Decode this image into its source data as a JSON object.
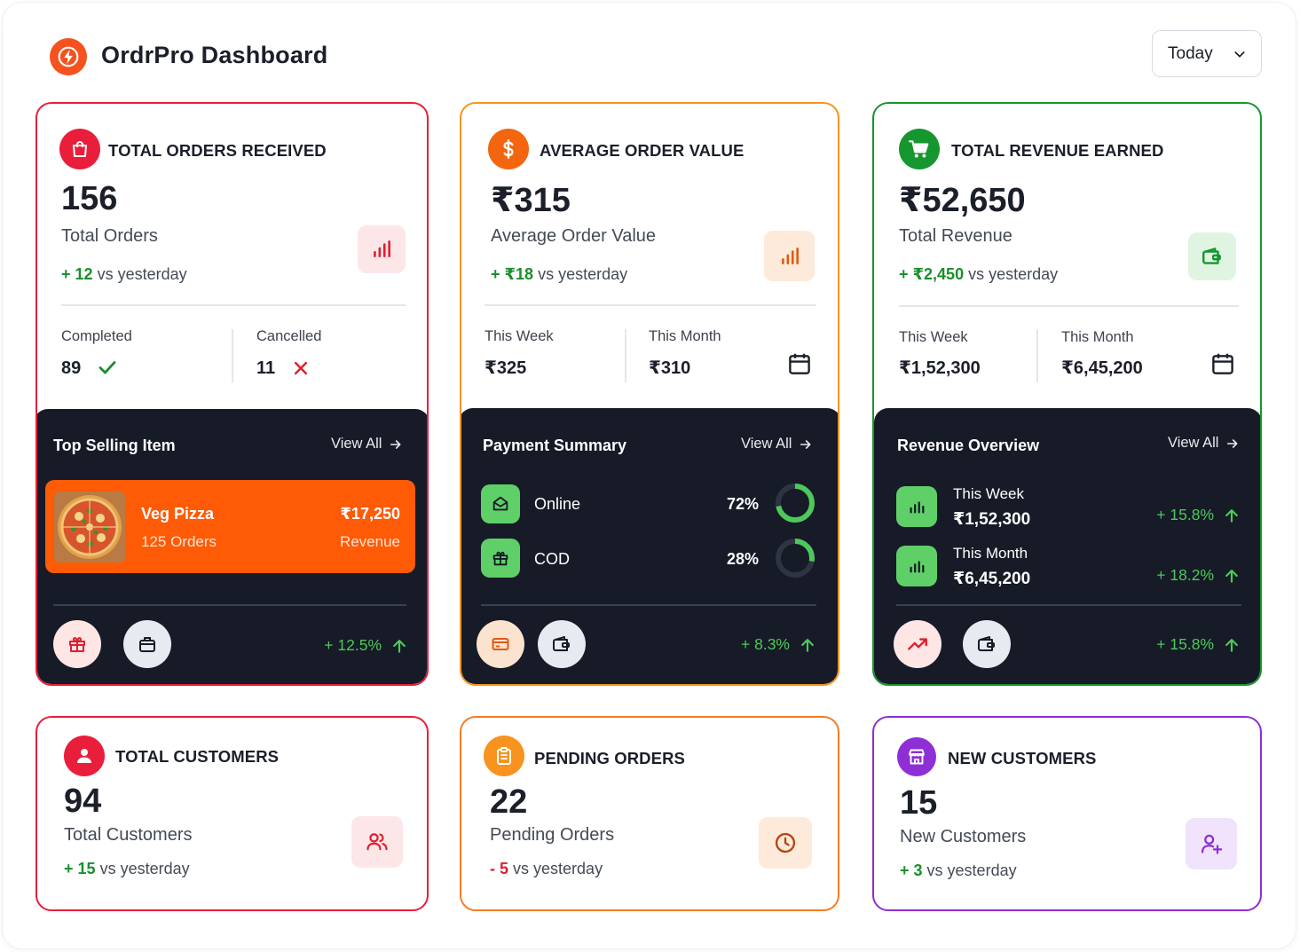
{
  "header": {
    "app_title": "OrdrPro Dashboard",
    "date_filter": "Today"
  },
  "orders_card": {
    "title": "TOTAL ORDERS RECEIVED",
    "value": "156",
    "subtitle": "Total Orders",
    "delta_value": "+ 12",
    "delta_text": "vs yesterday",
    "completed_label": "Completed",
    "completed_value": "89",
    "cancelled_label": "Cancelled",
    "cancelled_value": "11",
    "panel": {
      "title": "Top Selling Item",
      "view_all": "View All",
      "item_name": "Veg Pizza",
      "item_orders": "125 Orders",
      "item_amount": "₹17,250",
      "item_amount_label": "Revenue",
      "growth": "+ 12.5%"
    }
  },
  "aov_card": {
    "title": "AVERAGE ORDER VALUE",
    "value": "₹315",
    "subtitle": "Average Order Value",
    "delta_value": "+ ₹18",
    "delta_text": "vs yesterday",
    "week_label": "This Week",
    "week_value": "₹325",
    "month_label": "This Month",
    "month_value": "₹310",
    "panel": {
      "title": "Payment Summary",
      "view_all": "View All",
      "methods": [
        {
          "name": "Online",
          "percent": "72%",
          "fraction": 0.72
        },
        {
          "name": "COD",
          "percent": "28%",
          "fraction": 0.28
        }
      ],
      "growth": "+ 8.3%"
    }
  },
  "revenue_card": {
    "title": "TOTAL REVENUE EARNED",
    "value": "₹52,650",
    "subtitle": "Total Revenue",
    "delta_value": "+ ₹2,450",
    "delta_text": "vs yesterday",
    "week_label": "This Week",
    "week_value": "₹1,52,300",
    "month_label": "This Month",
    "month_value": "₹6,45,200",
    "panel": {
      "title": "Revenue Overview",
      "view_all": "View All",
      "rows": [
        {
          "label": "This Week",
          "value": "₹1,52,300",
          "growth": "+ 15.8%"
        },
        {
          "label": "This Month",
          "value": "₹6,45,200",
          "growth": "+ 18.2%"
        }
      ],
      "growth": "+ 15.8%"
    }
  },
  "customers_card": {
    "title": "TOTAL CUSTOMERS",
    "value": "94",
    "subtitle": "Total Customers",
    "delta_value": "+ 15",
    "delta_text": "vs yesterday"
  },
  "pending_card": {
    "title": "PENDING ORDERS",
    "value": "22",
    "subtitle": "Pending Orders",
    "delta_value": "- 5",
    "delta_text": "vs yesterday"
  },
  "new_customers_card": {
    "title": "NEW CUSTOMERS",
    "value": "15",
    "subtitle": "New Customers",
    "delta_value": "+ 3",
    "delta_text": "vs yesterday"
  },
  "colors": {
    "red": "#e91e3a",
    "orange": "#f7931e",
    "green": "#16962f",
    "purple": "#8e2fd6",
    "dark_panel": "#161b27",
    "accent_orange": "#ff5a05"
  },
  "icons": [
    "bolt-icon",
    "shopping-bag-icon",
    "dollar-icon",
    "cart-icon",
    "bar-chart-icon",
    "wallet-icon",
    "calendar-icon",
    "check-icon",
    "x-icon",
    "arrow-right-icon",
    "arrow-up-icon",
    "gift-icon",
    "briefcase-icon",
    "card-icon",
    "trend-up-icon",
    "user-icon",
    "users-icon",
    "clipboard-icon",
    "clock-icon",
    "store-icon",
    "user-plus-icon",
    "chevron-down-icon"
  ]
}
